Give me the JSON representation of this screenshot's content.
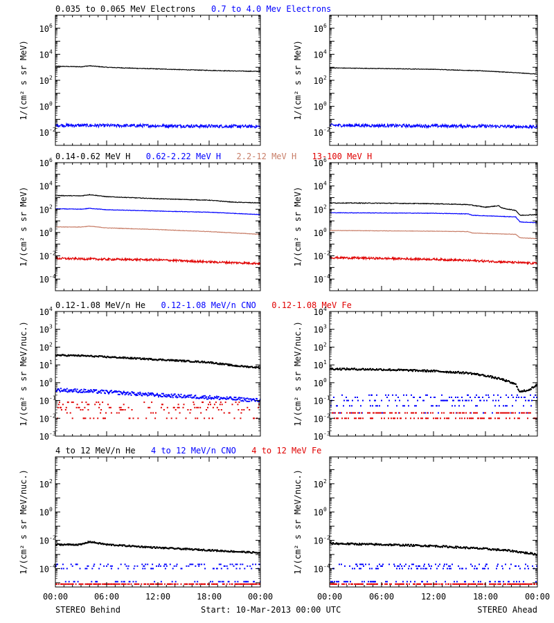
{
  "colors": {
    "black": "#000000",
    "blue": "#0000ff",
    "tan": "#c87e68",
    "red": "#e00000"
  },
  "footer": {
    "left": "STEREO Behind",
    "center": "Start: 10-Mar-2013 00:00 UTC",
    "right": "STEREO Ahead"
  },
  "chart_data": [
    {
      "type": "line",
      "row": 0,
      "panel": "left",
      "legend": [
        {
          "text": "0.035 to 0.065 MeV Electrons",
          "color": "#000000"
        },
        {
          "text": "0.7 to 4.0 Mev Electrons",
          "color": "#0000ff"
        }
      ],
      "ylabel": "1/(cm² s sr MeV)",
      "y_scale": "log",
      "ylim_exp": [
        -3,
        7
      ],
      "yticks": [
        {
          "exp": "-2",
          "label": "10"
        },
        {
          "exp": "0",
          "label": "10"
        },
        {
          "exp": "2",
          "label": "10"
        },
        {
          "exp": "4",
          "label": "10"
        },
        {
          "exp": "6",
          "label": "10"
        }
      ],
      "xticks": [],
      "series": [
        {
          "color": "#000000",
          "x": [
            0,
            3,
            4,
            6,
            9,
            12,
            15,
            18,
            21,
            24
          ],
          "y": [
            1200,
            1100,
            1300,
            1000,
            850,
            750,
            650,
            580,
            520,
            480
          ],
          "noise": 0.05
        },
        {
          "color": "#0000ff",
          "x": [
            0,
            6,
            12,
            18,
            24
          ],
          "y": [
            0.035,
            0.033,
            0.032,
            0.03,
            0.028
          ],
          "noise": 0.25
        }
      ]
    },
    {
      "type": "line",
      "row": 0,
      "panel": "right",
      "legend": [],
      "ylabel": "1/(cm² s sr MeV)",
      "y_scale": "log",
      "ylim_exp": [
        -3,
        7
      ],
      "yticks": [
        {
          "exp": "-2",
          "label": "10"
        },
        {
          "exp": "0",
          "label": "10"
        },
        {
          "exp": "2",
          "label": "10"
        },
        {
          "exp": "4",
          "label": "10"
        },
        {
          "exp": "6",
          "label": "10"
        }
      ],
      "xticks": [],
      "series": [
        {
          "color": "#000000",
          "x": [
            0,
            6,
            12,
            18,
            21,
            24
          ],
          "y": [
            900,
            800,
            700,
            520,
            400,
            300
          ],
          "noise": 0.04
        },
        {
          "color": "#0000ff",
          "x": [
            0,
            6,
            12,
            18,
            24
          ],
          "y": [
            0.035,
            0.033,
            0.031,
            0.03,
            0.026
          ],
          "noise": 0.25
        }
      ]
    },
    {
      "type": "line",
      "row": 1,
      "panel": "left",
      "legend": [
        {
          "text": "0.14-0.62 MeV H",
          "color": "#000000"
        },
        {
          "text": "0.62-2.22 MeV H",
          "color": "#0000ff"
        },
        {
          "text": "2.2-12 MeV H",
          "color": "#c87e68"
        },
        {
          "text": "13-100 MeV H",
          "color": "#e00000"
        }
      ],
      "ylabel": "1/(cm² s sr MeV)",
      "y_scale": "log",
      "ylim_exp": [
        -5,
        6
      ],
      "yticks": [
        {
          "exp": "-4",
          "label": "10"
        },
        {
          "exp": "-2",
          "label": "10"
        },
        {
          "exp": "0",
          "label": "10"
        },
        {
          "exp": "2",
          "label": "10"
        },
        {
          "exp": "4",
          "label": "10"
        },
        {
          "exp": "6",
          "label": "10"
        }
      ],
      "xticks": [],
      "series": [
        {
          "color": "#000000",
          "x": [
            0,
            3,
            4,
            6,
            12,
            18,
            21,
            24
          ],
          "y": [
            1500,
            1400,
            1800,
            1200,
            800,
            600,
            400,
            350
          ],
          "noise": 0.05
        },
        {
          "color": "#0000ff",
          "x": [
            0,
            3,
            4,
            6,
            12,
            18,
            24
          ],
          "y": [
            110,
            100,
            120,
            90,
            70,
            55,
            35
          ],
          "noise": 0.04
        },
        {
          "color": "#c87e68",
          "x": [
            0,
            3,
            4,
            6,
            12,
            18,
            24
          ],
          "y": [
            3,
            3,
            3.5,
            2.5,
            1.8,
            1.2,
            0.7
          ],
          "noise": 0.04
        },
        {
          "color": "#e00000",
          "x": [
            0,
            6,
            12,
            18,
            24
          ],
          "y": [
            0.006,
            0.005,
            0.0045,
            0.003,
            0.0022
          ],
          "noise": 0.18
        }
      ]
    },
    {
      "type": "line",
      "row": 1,
      "panel": "right",
      "legend": [],
      "ylabel": "1/(cm² s sr MeV)",
      "y_scale": "log",
      "ylim_exp": [
        -5,
        6
      ],
      "yticks": [
        {
          "exp": "-4",
          "label": "10"
        },
        {
          "exp": "-2",
          "label": "10"
        },
        {
          "exp": "0",
          "label": "10"
        },
        {
          "exp": "2",
          "label": "10"
        },
        {
          "exp": "4",
          "label": "10"
        },
        {
          "exp": "6",
          "label": "10"
        }
      ],
      "xticks": [],
      "series": [
        {
          "color": "#000000",
          "x": [
            0,
            6,
            12,
            16,
            18,
            19.5,
            20,
            21.5,
            22,
            24
          ],
          "y": [
            350,
            330,
            300,
            250,
            150,
            200,
            120,
            80,
            30,
            35
          ],
          "noise": 0.06
        },
        {
          "color": "#0000ff",
          "x": [
            0,
            6,
            12,
            16,
            16.5,
            21.5,
            22,
            24
          ],
          "y": [
            50,
            48,
            45,
            40,
            30,
            22,
            8,
            7
          ],
          "noise": 0.04
        },
        {
          "color": "#c87e68",
          "x": [
            0,
            6,
            12,
            16,
            16.5,
            21.5,
            22,
            24
          ],
          "y": [
            1.5,
            1.4,
            1.3,
            1.2,
            0.9,
            0.7,
            0.35,
            0.3
          ],
          "noise": 0.03
        },
        {
          "color": "#e00000",
          "x": [
            0,
            6,
            12,
            18,
            24
          ],
          "y": [
            0.007,
            0.006,
            0.005,
            0.0035,
            0.0022
          ],
          "noise": 0.18
        }
      ]
    },
    {
      "type": "scatter",
      "row": 2,
      "panel": "left",
      "legend": [
        {
          "text": "0.12-1.08 MeV/n He",
          "color": "#000000"
        },
        {
          "text": "0.12-1.08 MeV/n CNO",
          "color": "#0000ff"
        },
        {
          "text": "0.12-1.08 MeV Fe",
          "color": "#e00000"
        }
      ],
      "ylabel": "1/(cm² s sr MeV/nuc.)",
      "y_scale": "log",
      "ylim_exp": [
        -3,
        4
      ],
      "yticks": [
        {
          "exp": "-3",
          "label": "10"
        },
        {
          "exp": "-2",
          "label": "10"
        },
        {
          "exp": "-1",
          "label": "10"
        },
        {
          "exp": "0",
          "label": "10"
        },
        {
          "exp": "1",
          "label": "10"
        },
        {
          "exp": "2",
          "label": "10"
        },
        {
          "exp": "3",
          "label": "10"
        },
        {
          "exp": "4",
          "label": "10"
        }
      ],
      "xticks": [],
      "series": [
        {
          "color": "#000000",
          "x": [
            0,
            3,
            6,
            12,
            18,
            21,
            24
          ],
          "y": [
            35,
            33,
            28,
            20,
            14,
            9,
            7
          ],
          "noise": 0.08
        },
        {
          "color": "#0000ff",
          "x": [
            0,
            6,
            12,
            18,
            24
          ],
          "y": [
            0.4,
            0.3,
            0.2,
            0.15,
            0.1
          ],
          "noise": 0.2
        },
        {
          "color": "#e00000",
          "x": [
            0,
            24
          ],
          "y": [
            0.03,
            0.02
          ],
          "noise": 0.4,
          "levels": [
            0.01,
            0.02,
            0.03,
            0.04,
            0.06,
            0.08
          ]
        }
      ]
    },
    {
      "type": "scatter",
      "row": 2,
      "panel": "right",
      "legend": [],
      "ylabel": "1/(cm² s sr MeV/nuc.)",
      "y_scale": "log",
      "ylim_exp": [
        -3,
        4
      ],
      "yticks": [
        {
          "exp": "-3",
          "label": "10"
        },
        {
          "exp": "-2",
          "label": "10"
        },
        {
          "exp": "-1",
          "label": "10"
        },
        {
          "exp": "0",
          "label": "10"
        },
        {
          "exp": "1",
          "label": "10"
        },
        {
          "exp": "2",
          "label": "10"
        },
        {
          "exp": "3",
          "label": "10"
        },
        {
          "exp": "4",
          "label": "10"
        }
      ],
      "xticks": [],
      "series": [
        {
          "color": "#000000",
          "x": [
            0,
            6,
            12,
            16,
            18,
            20,
            21.5,
            22,
            23,
            24
          ],
          "y": [
            6,
            5.5,
            4.5,
            3.5,
            2.5,
            1.5,
            0.8,
            0.3,
            0.4,
            0.7
          ],
          "noise": 0.1
        },
        {
          "color": "#0000ff",
          "x": [
            0,
            6,
            12,
            18,
            24
          ],
          "y": [
            0.15,
            0.13,
            0.12,
            0.1,
            0.08
          ],
          "noise": 0.2,
          "levels": [
            0.02,
            0.05,
            0.1,
            0.15,
            0.2
          ]
        },
        {
          "color": "#e00000",
          "x": [
            0,
            24
          ],
          "y": [
            0.015,
            0.012
          ],
          "noise": 0.3,
          "levels": [
            0.01,
            0.02
          ]
        }
      ]
    },
    {
      "type": "scatter",
      "row": 3,
      "panel": "left",
      "legend": [
        {
          "text": "4 to 12 MeV/n He",
          "color": "#000000"
        },
        {
          "text": "4 to 12 MeV/n CNO",
          "color": "#0000ff"
        },
        {
          "text": "4 to 12 MeV Fe",
          "color": "#e00000"
        }
      ],
      "ylabel": "1/(cm² s sr MeV/nuc.)",
      "y_scale": "log",
      "ylim_exp": [
        -5.3,
        3.9
      ],
      "yticks": [
        {
          "exp": "-4",
          "label": "10"
        },
        {
          "exp": "-2",
          "label": "10"
        },
        {
          "exp": "0",
          "label": "10"
        },
        {
          "exp": "2",
          "label": "10"
        }
      ],
      "xticks": [
        "00:00",
        "06:00",
        "12:00",
        "18:00",
        "00:00"
      ],
      "series": [
        {
          "color": "#000000",
          "x": [
            0,
            3,
            4,
            6,
            12,
            18,
            24
          ],
          "y": [
            0.005,
            0.005,
            0.008,
            0.005,
            0.003,
            0.002,
            0.0013
          ],
          "noise": 0.1
        },
        {
          "color": "#0000ff",
          "x": [
            0,
            24
          ],
          "y": [
            0.0001,
            0.0001
          ],
          "noise": 0.3,
          "levels": [
            1.2e-05,
            0.0001,
            0.00015,
            0.0002
          ]
        },
        {
          "color": "#e00000",
          "x": [
            0,
            24
          ],
          "y": [
            1e-05,
            1e-05
          ],
          "noise": 0.1,
          "levels": [
            8e-06
          ]
        }
      ]
    },
    {
      "type": "scatter",
      "row": 3,
      "panel": "right",
      "legend": [],
      "ylabel": "1/(cm² s sr MeV/nuc.)",
      "y_scale": "log",
      "ylim_exp": [
        -5.3,
        3.9
      ],
      "yticks": [
        {
          "exp": "-4",
          "label": "10"
        },
        {
          "exp": "-2",
          "label": "10"
        },
        {
          "exp": "0",
          "label": "10"
        },
        {
          "exp": "2",
          "label": "10"
        }
      ],
      "xticks": [
        "00:00",
        "06:00",
        "12:00",
        "18:00",
        "00:00"
      ],
      "series": [
        {
          "color": "#000000",
          "x": [
            0,
            6,
            12,
            18,
            21,
            24
          ],
          "y": [
            0.006,
            0.005,
            0.004,
            0.0025,
            0.0018,
            0.001
          ],
          "noise": 0.12
        },
        {
          "color": "#0000ff",
          "x": [
            0,
            24
          ],
          "y": [
            0.0001,
            0.0001
          ],
          "noise": 0.3,
          "levels": [
            1.2e-05,
            0.0001,
            0.00015,
            0.0002
          ]
        },
        {
          "color": "#e00000",
          "x": [
            0,
            24
          ],
          "y": [
            1e-05,
            1e-05
          ],
          "noise": 0.1,
          "levels": [
            8e-06
          ]
        }
      ]
    }
  ]
}
